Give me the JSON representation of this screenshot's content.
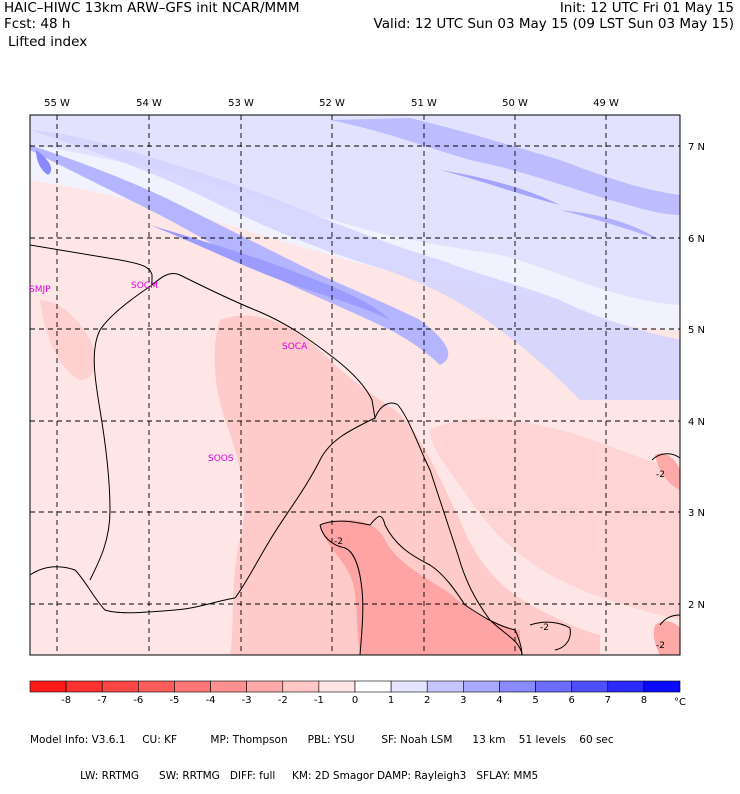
{
  "header": {
    "model_line": "HAIC–HIWC 13km ARW–GFS init   NCAR/MMM",
    "forecast_line": "Fcst:   48 h",
    "variable": "Lifted index",
    "init_line": "Init: 12 UTC Fri 01 May 15",
    "valid_line": "Valid: 12 UTC Sun 03 May 15 (09 LST Sun 03 May 15)"
  },
  "map": {
    "longitude_labels": [
      "55 W",
      "54 W",
      "53 W",
      "52 W",
      "51 W",
      "50 W",
      "49 W"
    ],
    "latitude_labels": [
      "7 N",
      "6 N",
      "5 N",
      "4 N",
      "3 N",
      "2 N"
    ],
    "station_labels": [
      "SMJP",
      "SOCM",
      "SOCA",
      "SOOS"
    ],
    "contour_labels": [
      "-2",
      "-2",
      "-2",
      "-2"
    ]
  },
  "colorbar": {
    "tick_labels": [
      "-8",
      "-7",
      "-6",
      "-5",
      "-4",
      "-3",
      "-2",
      "-1",
      "0",
      "1",
      "2",
      "3",
      "4",
      "5",
      "6",
      "7",
      "8"
    ],
    "unit": "°C",
    "colors": [
      "#ff1a1a",
      "#ff3030",
      "#ff4646",
      "#ff5c5c",
      "#ff7676",
      "#ff9090",
      "#ffaaaa",
      "#ffc6c6",
      "#ffe4e4",
      "#ffffff",
      "#e4e4ff",
      "#c6c6ff",
      "#a8a8ff",
      "#8a8aff",
      "#6c6cff",
      "#4e4eff",
      "#2a2aff",
      "#0a0aff"
    ]
  },
  "footer": {
    "line1": "Model Info: V3.6.1     CU: KF          MP: Thompson      PBL: YSU        SF: Noah LSM      13 km    51 levels    60 sec",
    "line2": "               LW: RRTMG      SW: RRTMG   DIFF: full     KM: 2D Smagor DAMP: Rayleigh3   SFLAY: MM5"
  }
}
